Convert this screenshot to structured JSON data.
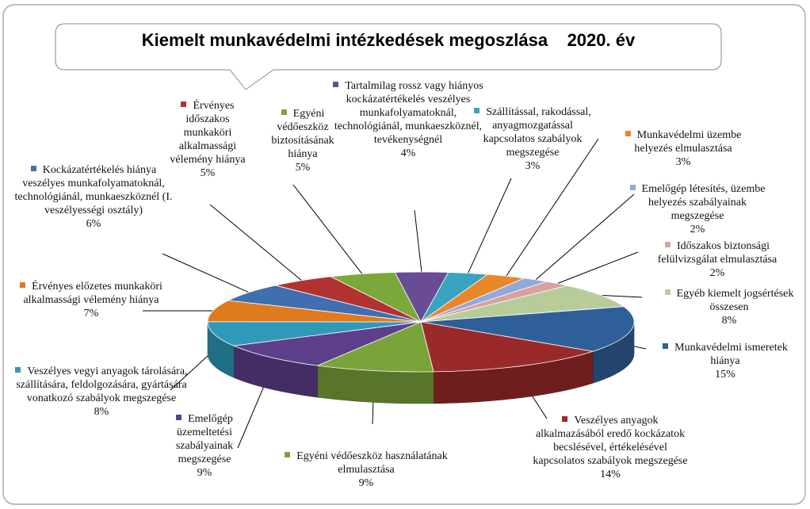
{
  "chart_data": {
    "type": "pie3d",
    "title": "Kiemelt munkavédelmi intézkedések megoszlása    2020. év",
    "categories": [
      "Tartalmilag rossz vagy hiányos kockázatértékelés veszélyes munkafolyamatoknál, technológiánál, munkaeszköznél, tevékenységnél",
      "Szállítással, rakodással, anyagmozgatással kapcsolatos szabályok megszegése",
      "Munkavédelmi üzembe helyezés elmulasztása",
      "Emelőgép létesítés, üzembe helyezés szabályainak megszegése",
      "Időszakos biztonsági felülvizsgálat elmulasztása",
      "Egyéb kiemelt jogsértések összesen",
      "Munkavédelmi ismeretek hiánya",
      "Veszélyes anyagok alkalmazásából eredő kockázatok becslésével, értékelésével kapcsolatos szabályok megszegése",
      "Egyéni védőeszköz használatának elmulasztása",
      "Emelőgép üzemeltetési szabályainak megszegése",
      "Veszélyes vegyi anyagok tárolására, szállítására, feldolgozására, gyártására vonatkozó szabályok megszegése",
      "Érvényes előzetes munkaköri alkalmassági vélemény hiánya",
      "Kockázatértékelés hiánya veszélyes munkafolyamatoknál, technológiánál, munkaeszköznél (I. veszélyességi osztály)",
      "Érvényes időszakos munkaköri alkalmassági vélemény hiánya",
      "Egyéni védőeszköz biztosításának hiánya"
    ],
    "values": [
      4,
      3,
      3,
      2,
      2,
      8,
      15,
      14,
      9,
      9,
      8,
      7,
      6,
      5,
      5
    ],
    "value_labels": [
      "4%",
      "3%",
      "3%",
      "2%",
      "2%",
      "8%",
      "15%",
      "14%",
      "9%",
      "9%",
      "8%",
      "7%",
      "6%",
      "5%",
      "5%"
    ],
    "colors": [
      "#6a4c96",
      "#3aa3c0",
      "#e8862a",
      "#92a9d9",
      "#d9a0a0",
      "#b8cc9a",
      "#2f5f99",
      "#9a2a2a",
      "#7aa33a",
      "#5e3f8c",
      "#2e9ab8",
      "#e07a1f",
      "#3f6fb0",
      "#b23232",
      "#7aa83a"
    ]
  }
}
